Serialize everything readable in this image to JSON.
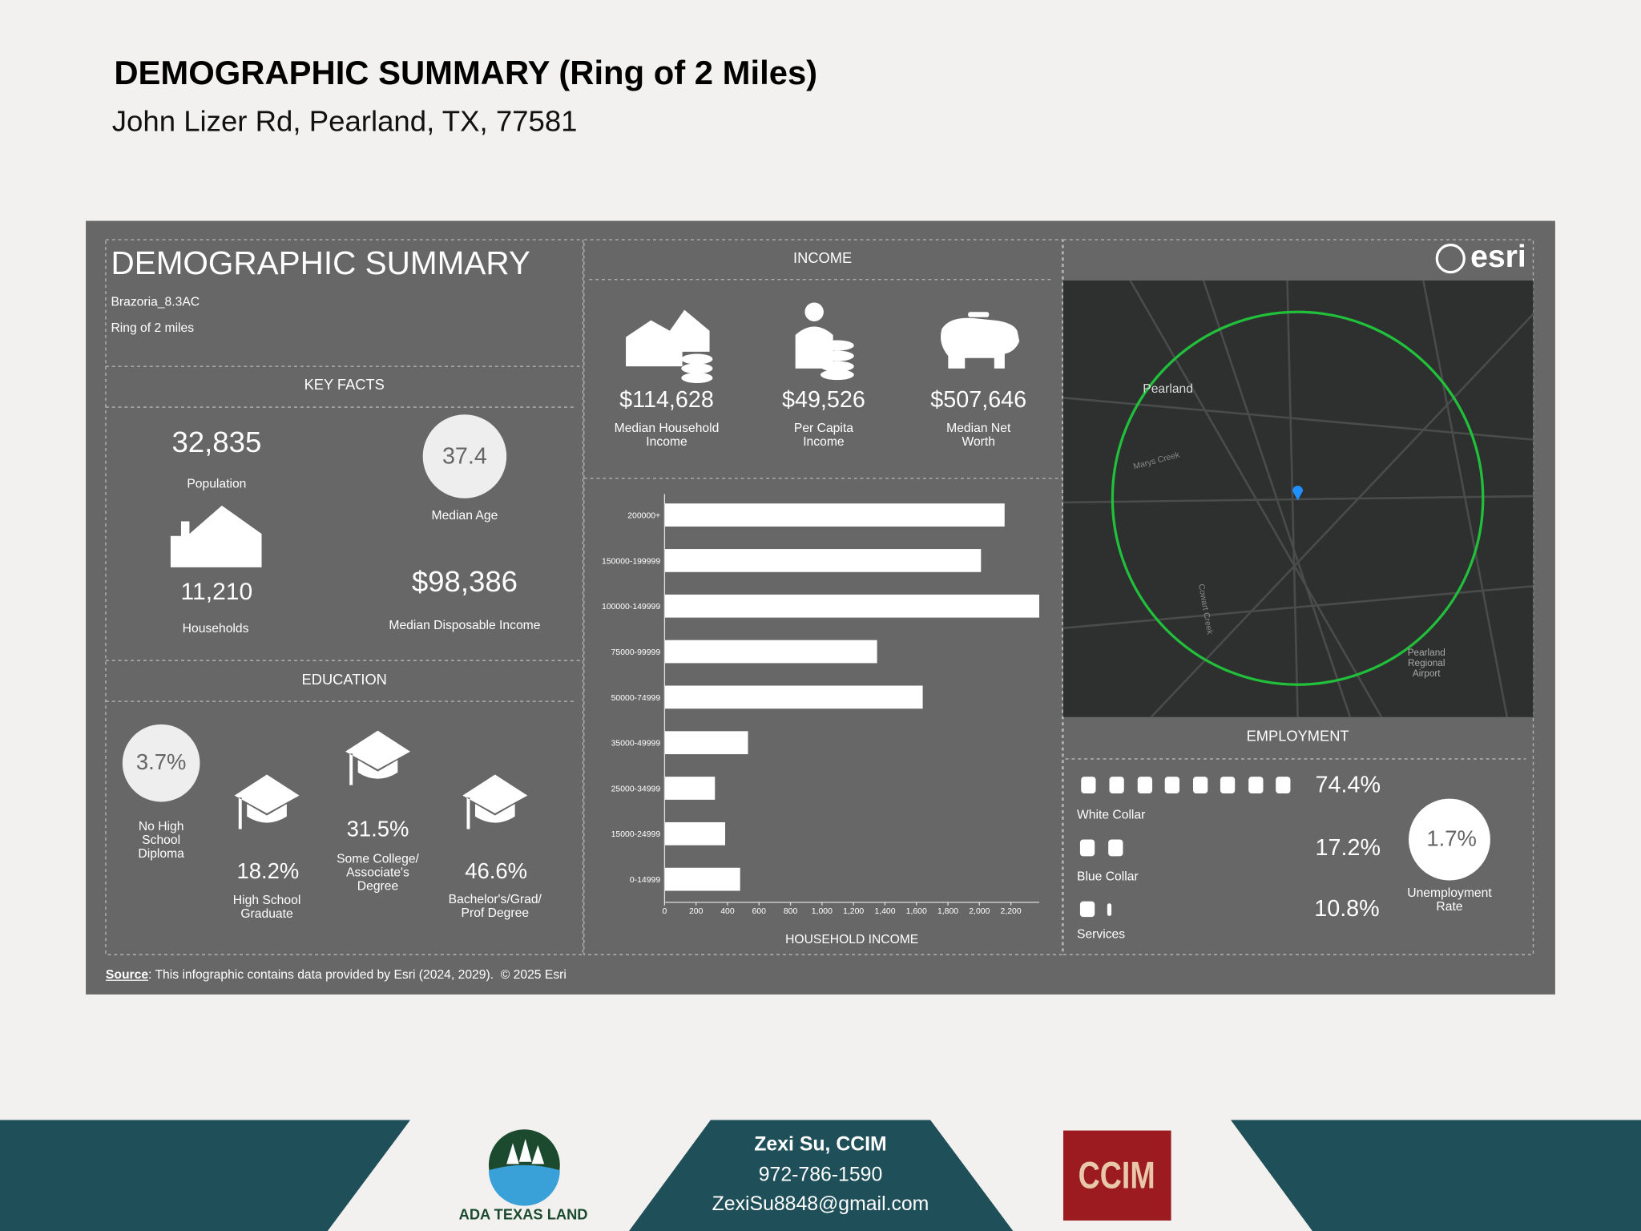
{
  "header": {
    "title": "DEMOGRAPHIC SUMMARY (Ring of 2 Miles)",
    "subtitle": "John Lizer Rd, Pearland, TX, 77581"
  },
  "infographic": {
    "title": "DEMOGRAPHIC SUMMARY",
    "site": "Brazoria_8.3AC",
    "ring": "Ring of 2 miles",
    "brand": "esri",
    "key_facts": {
      "heading": "KEY FACTS",
      "items": [
        {
          "value": "32,835",
          "label": "Population"
        },
        {
          "value": "37.4",
          "label": "Median Age"
        },
        {
          "value": "11,210",
          "label": "Households"
        },
        {
          "value": "$98,386",
          "label": "Median Disposable Income"
        }
      ]
    },
    "education": {
      "heading": "EDUCATION",
      "items": [
        {
          "value": "3.7%",
          "label": "No High School Diploma"
        },
        {
          "value": "18.2%",
          "label": "High School Graduate"
        },
        {
          "value": "31.5%",
          "label": "Some College/ Associate's Degree"
        },
        {
          "value": "46.6%",
          "label": "Bachelor's/Grad/ Prof Degree"
        }
      ]
    },
    "income": {
      "heading": "INCOME",
      "items": [
        {
          "value": "$114,628",
          "label": "Median Household Income"
        },
        {
          "value": "$49,526",
          "label": "Per Capita Income"
        },
        {
          "value": "$507,646",
          "label": "Median Net Worth"
        }
      ]
    },
    "employment": {
      "heading": "EMPLOYMENT",
      "items": [
        {
          "value": "74.4%",
          "label": "White Collar"
        },
        {
          "value": "17.2%",
          "label": "Blue Collar"
        },
        {
          "value": "10.8%",
          "label": "Services"
        }
      ],
      "unemployment": {
        "value": "1.7%",
        "label": "Unemployment Rate"
      }
    },
    "map": {
      "labels": [
        "Pearland",
        "Pearland Regional Airport",
        "Marys Creek",
        "Cowart Creek"
      ]
    },
    "source": {
      "label": "Source",
      "text": ": This infographic contains data provided by Esri (2024, 2029).  © 2025 Esri"
    }
  },
  "chart_data": {
    "type": "bar",
    "orientation": "horizontal",
    "xlabel": "HOUSEHOLD INCOME",
    "categories": [
      "200000+",
      "150000-199999",
      "100000-149999",
      "75000-99999",
      "50000-74999",
      "35000-49999",
      "25000-34999",
      "15000-24999",
      "0-14999"
    ],
    "values": [
      2160,
      2010,
      2380,
      1350,
      1640,
      530,
      320,
      385,
      480
    ],
    "color": "#ffffff",
    "xlim": [
      0,
      2380
    ],
    "xticks": [
      0,
      200,
      400,
      600,
      800,
      {
        "value": 1000,
        "label": "1,000"
      },
      {
        "value": 1200,
        "label": "1,200"
      },
      {
        "value": 1400,
        "label": "1,400"
      },
      {
        "value": 1600,
        "label": "1,600"
      },
      {
        "value": 1800,
        "label": "1,800"
      },
      {
        "value": 2000,
        "label": "2,000"
      },
      {
        "value": 2200,
        "label": "2,200"
      }
    ]
  },
  "footer": {
    "brand": "ADA TEXAS LAND",
    "name": "Zexi Su, CCIM",
    "phone": "972-786-1590",
    "email": "ZexiSu8848@gmail.com",
    "badge": "CCIM"
  }
}
